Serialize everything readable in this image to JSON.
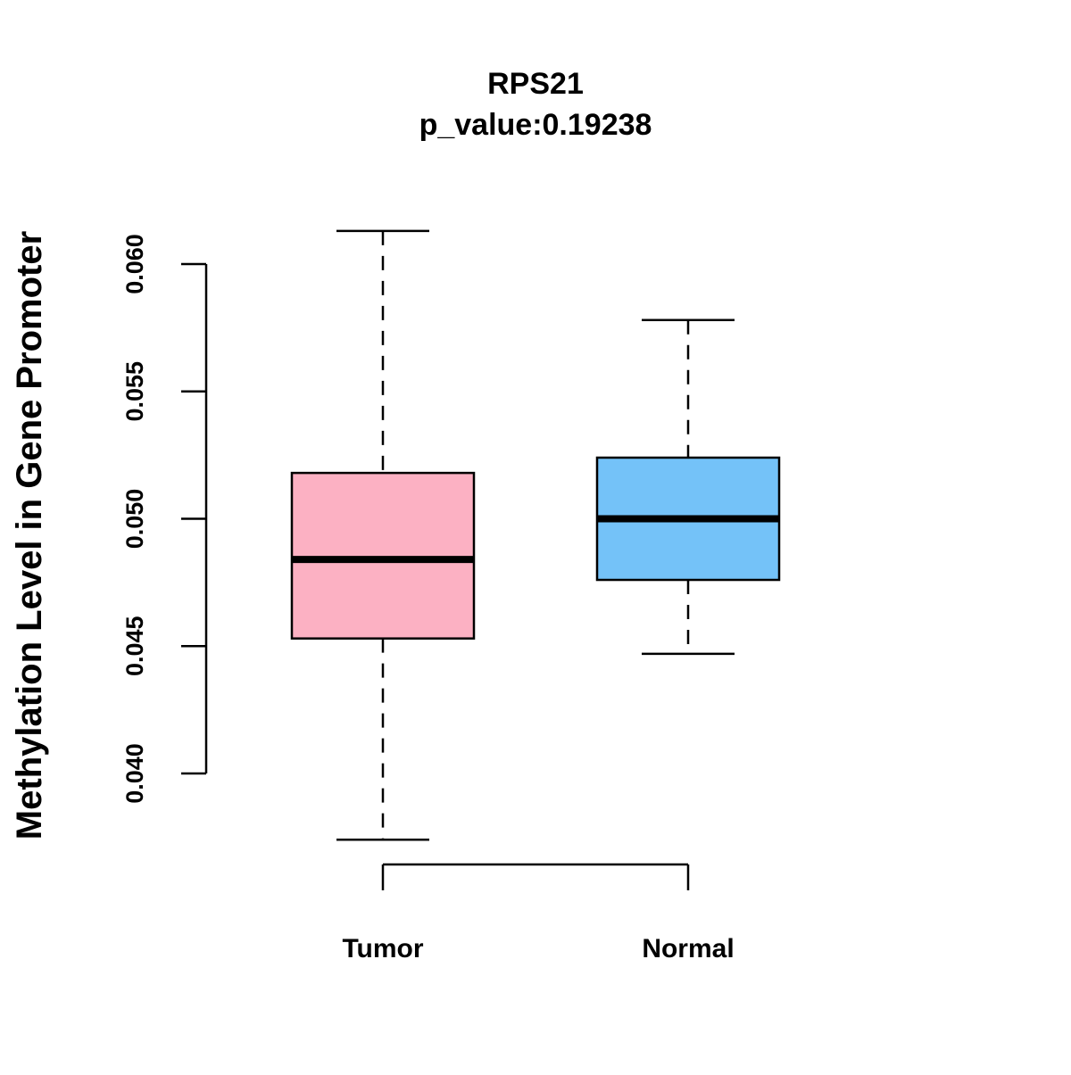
{
  "chart_data": {
    "type": "boxplot",
    "title": "RPS21",
    "subtitle": "p_value:0.19238",
    "xlabel": "",
    "ylabel": "Methylation Level in Gene Promoter",
    "ylim": [
      0.0364,
      0.0623
    ],
    "yticks": [
      0.04,
      0.045,
      0.05,
      0.055,
      0.06
    ],
    "ytick_labels": [
      "0.040",
      "0.045",
      "0.050",
      "0.055",
      "0.060"
    ],
    "grid": false,
    "categories": [
      "Tumor",
      "Normal"
    ],
    "series": [
      {
        "name": "Tumor",
        "color": "#FCB1C3",
        "whisker_low": 0.0374,
        "q1": 0.0453,
        "median": 0.0484,
        "q3": 0.0518,
        "whisker_high": 0.0613
      },
      {
        "name": "Normal",
        "color": "#74C2F8",
        "whisker_low": 0.0447,
        "q1": 0.0476,
        "median": 0.05,
        "q3": 0.0524,
        "whisker_high": 0.0578
      }
    ]
  }
}
